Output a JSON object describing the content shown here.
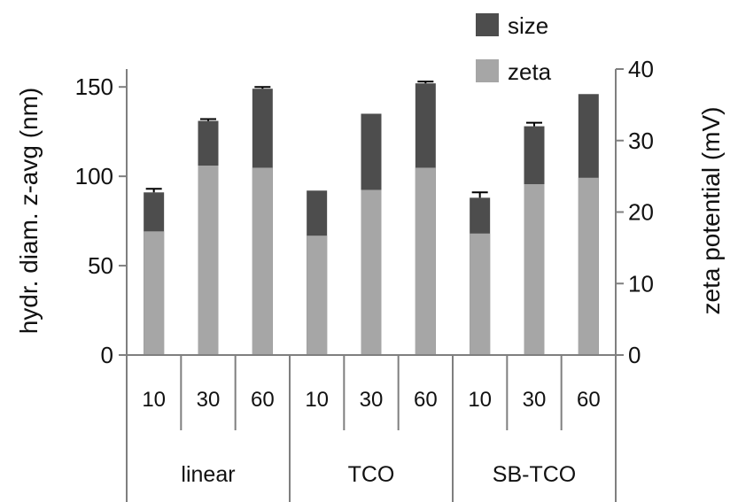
{
  "chart_data": {
    "type": "bar",
    "stacked": true,
    "groups": [
      {
        "name": "linear",
        "categories": [
          "10",
          "30",
          "60"
        ]
      },
      {
        "name": "TCO",
        "categories": [
          "10",
          "30",
          "60"
        ]
      },
      {
        "name": "SB-TCO",
        "categories": [
          "10",
          "30",
          "60"
        ]
      }
    ],
    "categories": [
      "10",
      "30",
      "60",
      "10",
      "30",
      "60",
      "10",
      "30",
      "60"
    ],
    "series": [
      {
        "name": "zeta",
        "axis": "right",
        "color": "#a6a6a6",
        "values": [
          17.3,
          26.5,
          26.2,
          16.7,
          23.1,
          26.2,
          17.0,
          23.9,
          24.8
        ]
      },
      {
        "name": "size",
        "axis": "left",
        "color": "#4d4d4d",
        "values": [
          91,
          131,
          149,
          92,
          135,
          152,
          88,
          128,
          146
        ],
        "error": [
          2,
          1,
          1,
          null,
          null,
          1,
          3,
          2,
          null
        ]
      }
    ],
    "ylabel": "hydr. diam. z-avg (nm)",
    "y2label": "zeta potential (mV)",
    "ylim": [
      0,
      160
    ],
    "y2lim": [
      0,
      40
    ],
    "yticks": [
      "0",
      "50",
      "100",
      "150"
    ],
    "y2ticks": [
      "0",
      "10",
      "20",
      "30",
      "40"
    ],
    "legend": {
      "position": "top-right",
      "entries": [
        "size",
        "zeta"
      ]
    },
    "grid": false
  }
}
